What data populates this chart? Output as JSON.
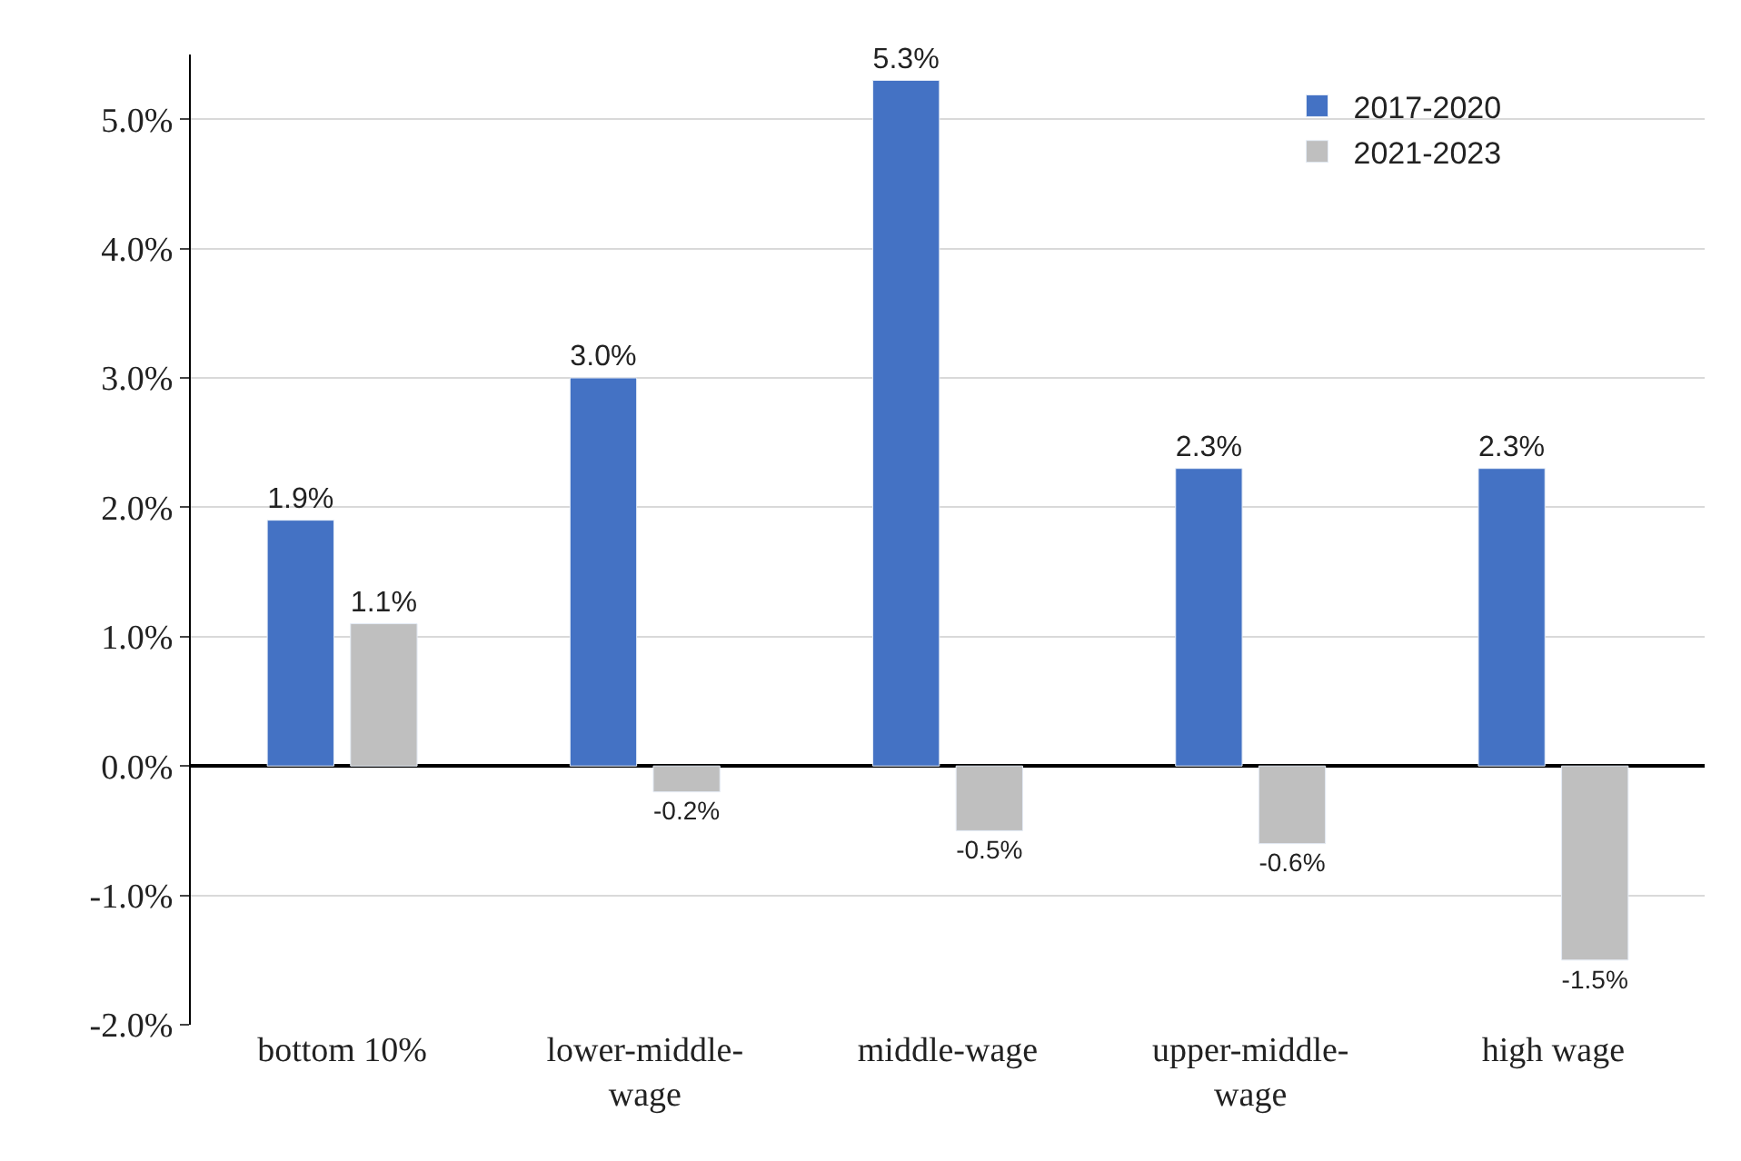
{
  "chart_data": {
    "type": "bar",
    "categories": [
      "bottom 10%",
      "lower-middle-wage",
      "middle-wage",
      "upper-middle-wage",
      "high wage"
    ],
    "series": [
      {
        "name": "2017-2020",
        "color": "#4472c4",
        "values": [
          1.9,
          3.0,
          5.3,
          2.3,
          2.3
        ],
        "value_labels": [
          "1.9%",
          "3.0%",
          "5.3%",
          "2.3%",
          "2.3%"
        ]
      },
      {
        "name": "2021-2023",
        "color": "#bfbfbf",
        "values": [
          1.1,
          -0.2,
          -0.5,
          -0.6,
          -1.5
        ],
        "value_labels": [
          "1.1%",
          "-0.2%",
          "-0.5%",
          "-0.6%",
          "-1.5%"
        ]
      }
    ],
    "ylim": [
      -2.0,
      5.5
    ],
    "yticks": [
      {
        "value": -2.0,
        "label": "-2.0%"
      },
      {
        "value": -1.0,
        "label": "-1.0%"
      },
      {
        "value": 0.0,
        "label": "0.0%"
      },
      {
        "value": 1.0,
        "label": "1.0%"
      },
      {
        "value": 2.0,
        "label": "2.0%"
      },
      {
        "value": 3.0,
        "label": "3.0%"
      },
      {
        "value": 4.0,
        "label": "4.0%"
      },
      {
        "value": 5.0,
        "label": "5.0%"
      }
    ],
    "grid": "y",
    "legend": "top right"
  }
}
